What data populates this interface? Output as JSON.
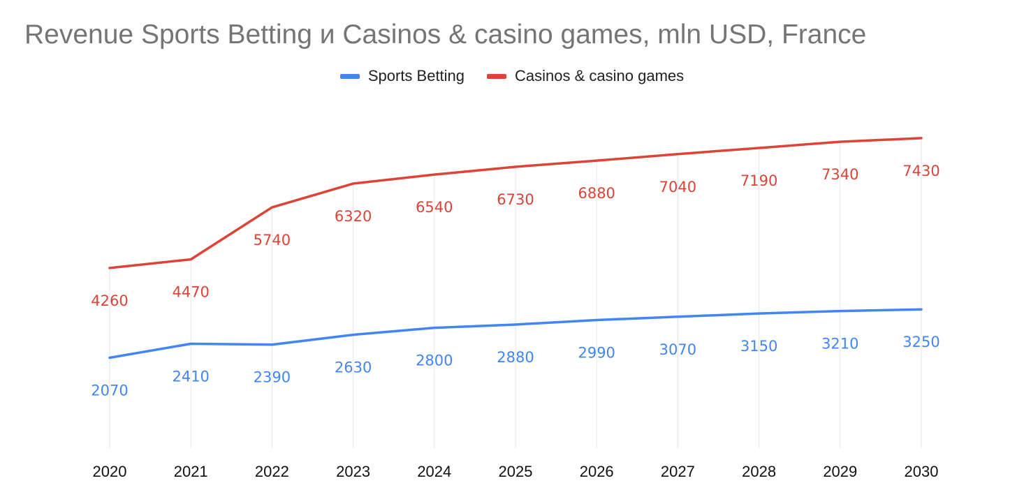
{
  "chart_data": {
    "type": "line",
    "title": "Revenue Sports Betting и Casinos & casino games, mln USD, France",
    "xlabel": "",
    "ylabel": "",
    "categories": [
      "2020",
      "2021",
      "2022",
      "2023",
      "2024",
      "2025",
      "2026",
      "2027",
      "2028",
      "2029",
      "2030"
    ],
    "ylim": [
      0,
      8500
    ],
    "grid": false,
    "legend_position": "top-center",
    "series": [
      {
        "name": "Sports Betting",
        "color": "#4285F4",
        "values": [
          2070,
          2410,
          2390,
          2630,
          2800,
          2880,
          2990,
          3070,
          3150,
          3210,
          3250
        ]
      },
      {
        "name": "Casinos & casino games",
        "color": "#DB4437",
        "values": [
          4260,
          4470,
          5740,
          6320,
          6540,
          6730,
          6880,
          7040,
          7190,
          7340,
          7430
        ]
      }
    ]
  }
}
